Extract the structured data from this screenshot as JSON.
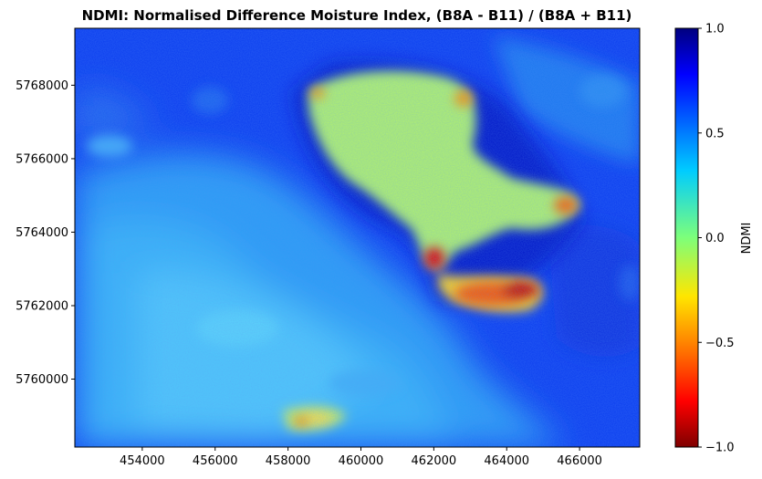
{
  "chart_data": {
    "type": "heatmap",
    "title": "NDMI: Normalised Difference Moisture Index, (B8A - B11) / (B8A + B11)",
    "xlabel": "",
    "ylabel": "",
    "x_ticks": [
      454000,
      456000,
      458000,
      460000,
      462000,
      464000,
      466000
    ],
    "x_tick_labels": [
      "454000",
      "456000",
      "458000",
      "460000",
      "462000",
      "464000",
      "466000"
    ],
    "y_ticks": [
      5760000,
      5762000,
      5764000,
      5766000,
      5768000
    ],
    "y_tick_labels": [
      "5760000",
      "5762000",
      "5764000",
      "5766000",
      "5768000"
    ],
    "xlim": [
      452150,
      467650
    ],
    "ylim": [
      5758150,
      5769550
    ],
    "colorbar": {
      "label": "NDMI",
      "colormap": "jet_r",
      "range": [
        -1.0,
        1.0
      ],
      "ticks": [
        1.0,
        0.5,
        0.0,
        -0.5,
        -1.0
      ],
      "tick_labels": [
        "1.0",
        "0.5",
        "0.0",
        "−0.5",
        "−1.0"
      ]
    },
    "features": {
      "main_low_region_ndmi": 0.0,
      "hotspots_ndmi": [
        -0.8,
        -0.7,
        -0.6
      ],
      "surrounding_ndmi": [
        0.3,
        0.7
      ]
    }
  }
}
